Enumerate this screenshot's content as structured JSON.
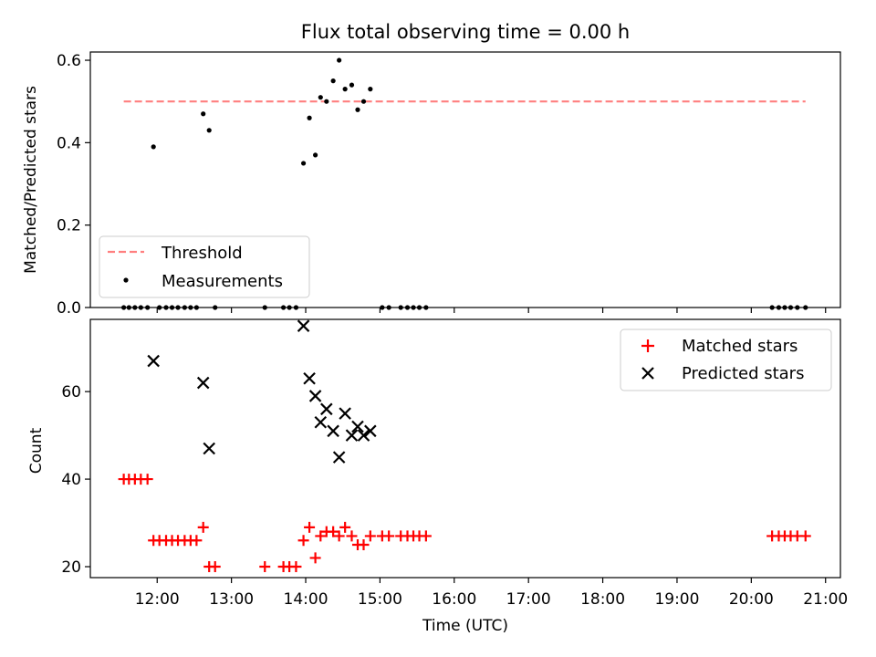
{
  "title": "Flux total observing time = 0.00 h",
  "colors": {
    "threshold": "#ff7f7f",
    "measurements": "#000000",
    "matched": "#ff0000",
    "predicted": "#000000"
  },
  "chart_data": [
    {
      "type": "scatter",
      "ylabel": "Matched/Predicted stars",
      "xlim": [
        11.1,
        21.2
      ],
      "ylim": [
        0,
        0.62
      ],
      "yticks": [
        0,
        0.2,
        0.4,
        0.6
      ],
      "ytick_labels": [
        "0.0",
        "0.2",
        "0.4",
        "0.6"
      ],
      "legend": {
        "position": "lower-left",
        "entries": [
          "Threshold",
          "Measurements"
        ]
      },
      "threshold": {
        "name": "Threshold",
        "y": 0.5,
        "x_range": [
          11.55,
          20.73
        ],
        "style": "dashed"
      },
      "series": [
        {
          "name": "Measurements",
          "x": [
            11.95,
            12.62,
            12.7,
            13.97,
            14.05,
            14.13,
            14.2,
            14.28,
            14.37,
            14.45,
            14.53,
            14.62,
            14.7,
            14.78,
            14.87,
            11.55,
            11.62,
            11.7,
            11.78,
            11.87,
            12.03,
            12.12,
            12.2,
            12.28,
            12.37,
            12.45,
            12.53,
            12.78,
            13.45,
            13.7,
            13.78,
            13.87,
            15.03,
            15.12,
            15.28,
            15.37,
            15.45,
            15.53,
            15.62,
            20.28,
            20.37,
            20.45,
            20.53,
            20.62,
            20.73
          ],
          "y": [
            0.39,
            0.47,
            0.43,
            0.35,
            0.46,
            0.37,
            0.51,
            0.5,
            0.55,
            0.6,
            0.53,
            0.54,
            0.48,
            0.5,
            0.53,
            0,
            0,
            0,
            0,
            0,
            0,
            0,
            0,
            0,
            0,
            0,
            0,
            0,
            0,
            0,
            0,
            0,
            0,
            0,
            0,
            0,
            0,
            0,
            0,
            0,
            0,
            0,
            0,
            0,
            0
          ]
        }
      ]
    },
    {
      "type": "scatter",
      "xlabel": "Time (UTC)",
      "ylabel": "Count",
      "xlim": [
        11.1,
        21.2
      ],
      "ylim": [
        17.5,
        76.5
      ],
      "yticks": [
        20,
        40,
        60
      ],
      "ytick_labels": [
        "20",
        "40",
        "60"
      ],
      "xticks": [
        12,
        13,
        14,
        15,
        16,
        17,
        18,
        19,
        20,
        21
      ],
      "xtick_labels": [
        "12:00",
        "13:00",
        "14:00",
        "15:00",
        "16:00",
        "17:00",
        "18:00",
        "19:00",
        "20:00",
        "21:00"
      ],
      "legend": {
        "position": "upper-right",
        "entries": [
          "Matched stars",
          "Predicted stars"
        ]
      },
      "series": [
        {
          "name": "Matched stars",
          "marker": "plus",
          "x": [
            11.55,
            11.62,
            11.7,
            11.78,
            11.87,
            11.95,
            12.03,
            12.12,
            12.2,
            12.28,
            12.37,
            12.45,
            12.53,
            12.62,
            12.7,
            12.78,
            13.45,
            13.7,
            13.78,
            13.87,
            13.97,
            14.05,
            14.13,
            14.2,
            14.28,
            14.37,
            14.45,
            14.53,
            14.62,
            14.7,
            14.78,
            14.87,
            15.03,
            15.12,
            15.28,
            15.37,
            15.45,
            15.53,
            15.62,
            20.28,
            20.37,
            20.45,
            20.53,
            20.62,
            20.73
          ],
          "y": [
            40,
            40,
            40,
            40,
            40,
            26,
            26,
            26,
            26,
            26,
            26,
            26,
            26,
            29,
            20,
            20,
            20,
            20,
            20,
            20,
            26,
            29,
            22,
            27,
            28,
            28,
            27,
            29,
            27,
            25,
            25,
            27,
            27,
            27,
            27,
            27,
            27,
            27,
            27,
            27,
            27,
            27,
            27,
            27,
            27
          ]
        },
        {
          "name": "Predicted stars",
          "marker": "x",
          "x": [
            11.95,
            12.62,
            12.7,
            13.97,
            14.05,
            14.13,
            14.2,
            14.28,
            14.37,
            14.45,
            14.53,
            14.62,
            14.7,
            14.78,
            14.87
          ],
          "y": [
            67,
            62,
            47,
            75,
            63,
            59,
            53,
            56,
            51,
            45,
            55,
            50,
            52,
            50,
            51
          ]
        }
      ]
    }
  ]
}
